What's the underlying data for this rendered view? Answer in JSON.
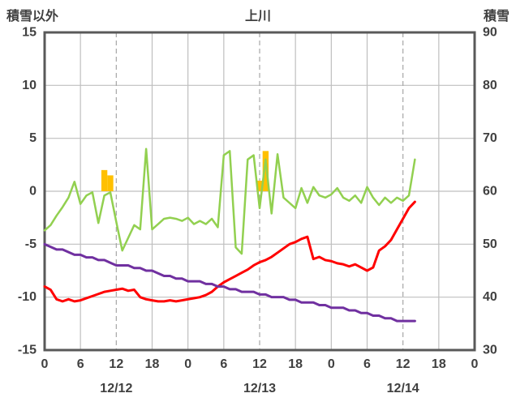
{
  "header": {
    "left_axis_title": "積雪以外",
    "title": "上川",
    "right_axis_title": "積雪"
  },
  "colors": {
    "temperature_line": "#92d050",
    "second_line": "#ff0000",
    "snow_depth_line": "#7030a0",
    "precip_bar": "#ffc000",
    "border": "#595959",
    "gridline": "#bfbfbf",
    "gridline_dashed": "#a6a6a6",
    "text": "#404040"
  },
  "chart_data": {
    "type": "line",
    "title": "上川",
    "left_axis": {
      "label": "積雪以外",
      "min": -15,
      "max": 15,
      "ticks": [
        15,
        10,
        5,
        0,
        -5,
        -10,
        -15
      ]
    },
    "right_axis": {
      "label": "積雪",
      "min": 30,
      "max": 90,
      "ticks": [
        90,
        80,
        70,
        60,
        50,
        40,
        30
      ]
    },
    "x_axis": {
      "min": 0,
      "max": 72,
      "tick_step": 6,
      "tick_labels": [
        "0",
        "6",
        "12",
        "18",
        "0",
        "6",
        "12",
        "18",
        "0",
        "6",
        "12",
        "18",
        "0"
      ],
      "date_labels": [
        {
          "label": "12/12",
          "hour": 12
        },
        {
          "label": "12/13",
          "hour": 36
        },
        {
          "label": "12/14",
          "hour": 60
        }
      ],
      "dashed_gridline_hours": [
        12,
        36,
        60
      ]
    },
    "series": [
      {
        "name": "temperature-green",
        "axis": "left",
        "color": "#92d050",
        "width": 2.5,
        "x_start": 0,
        "x_step": 1,
        "values": [
          -3.7,
          -3.2,
          -2.3,
          -1.5,
          -0.6,
          0.9,
          -1.2,
          -0.4,
          -0.1,
          -3.0,
          -0.4,
          -0.1,
          -2.9,
          -5.6,
          -4.4,
          -3.2,
          -3.6,
          4.0,
          -3.6,
          -3.1,
          -2.6,
          -2.5,
          -2.6,
          -2.8,
          -2.5,
          -3.1,
          -2.8,
          -3.1,
          -2.6,
          -3.4,
          3.4,
          3.8,
          -5.3,
          -5.9,
          3.0,
          3.4,
          -1.6,
          3.0,
          -2.1,
          3.5,
          -0.6,
          -1.1,
          -1.6,
          0.3,
          -1.1,
          0.4,
          -0.4,
          -0.6,
          -0.3,
          0.3,
          -0.6,
          -0.9,
          -0.4,
          -1.1,
          0.4,
          -0.6,
          -1.3,
          -0.6,
          -1.1,
          -0.6,
          -0.9,
          -0.4,
          3.0
        ]
      },
      {
        "name": "temperature-red",
        "axis": "left",
        "color": "#ff0000",
        "width": 3,
        "x_start": 0,
        "x_step": 1,
        "values": [
          -9.0,
          -9.3,
          -10.2,
          -10.4,
          -10.2,
          -10.4,
          -10.3,
          -10.1,
          -9.9,
          -9.7,
          -9.5,
          -9.4,
          -9.3,
          -9.2,
          -9.4,
          -9.3,
          -10.0,
          -10.2,
          -10.3,
          -10.4,
          -10.4,
          -10.3,
          -10.4,
          -10.3,
          -10.2,
          -10.1,
          -10.0,
          -9.8,
          -9.5,
          -9.0,
          -8.6,
          -8.3,
          -8.0,
          -7.7,
          -7.4,
          -7.0,
          -6.7,
          -6.5,
          -6.2,
          -5.8,
          -5.4,
          -5.0,
          -4.8,
          -4.5,
          -4.3,
          -6.4,
          -6.2,
          -6.5,
          -6.6,
          -6.8,
          -6.9,
          -7.1,
          -6.9,
          -7.2,
          -7.5,
          -7.2,
          -5.6,
          -5.2,
          -4.6,
          -3.6,
          -2.6,
          -1.6,
          -1.0
        ]
      },
      {
        "name": "snow-depth-purple",
        "axis": "right",
        "color": "#7030a0",
        "width": 3,
        "x_start": 0,
        "x_step": 1,
        "values": [
          50,
          49.5,
          49,
          49,
          48.5,
          48,
          48,
          47.5,
          47.5,
          47,
          47,
          46.5,
          46,
          46,
          46,
          45.5,
          45.5,
          45,
          45,
          44.5,
          44,
          44,
          43.5,
          43.5,
          43,
          43,
          43,
          42.5,
          42.5,
          42,
          42,
          41.5,
          41.5,
          41,
          41,
          41,
          40.5,
          40.5,
          40,
          40,
          40,
          39.5,
          39.5,
          39,
          39,
          39,
          38.5,
          38.5,
          38,
          38,
          38,
          37.5,
          37.5,
          37,
          37,
          36.5,
          36.5,
          36,
          36,
          35.5,
          35.5,
          35.5,
          35.5
        ]
      }
    ],
    "bars": {
      "name": "precipitation-bars",
      "axis": "left",
      "color": "#ffc000",
      "points": [
        [
          10,
          2.0
        ],
        [
          11,
          1.5
        ],
        [
          36,
          1.0
        ],
        [
          37,
          3.8
        ]
      ]
    }
  }
}
